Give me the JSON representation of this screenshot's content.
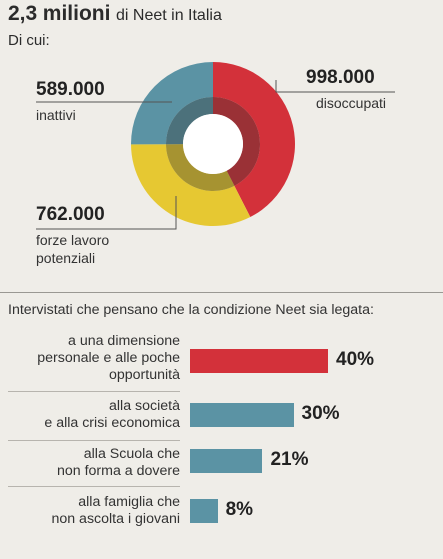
{
  "colors": {
    "red": "#d3313a",
    "blue": "#5b93a4",
    "yellow": "#e6c832",
    "background": "#efede8"
  },
  "header": {
    "title_number": "2,3",
    "title_bold": "milioni",
    "title_rest": "di Neet in Italia",
    "subtitle": "Di cui:"
  },
  "donut": {
    "segments": [
      {
        "value_text": "998.000",
        "label": "disoccupati",
        "color": "#d3313a"
      },
      {
        "value_text": "762.000",
        "label_line1": "forze lavoro",
        "label_line2": "potenziali",
        "color": "#e6c832"
      },
      {
        "value_text": "589.000",
        "label": "inattivi",
        "color": "#5b93a4"
      }
    ]
  },
  "bars": {
    "title": "Intervistati che pensano che la condizione Neet sia legata:",
    "rows": [
      {
        "lines": [
          "a una dimensione",
          "personale e alle poche",
          "opportunità"
        ],
        "pct_text": "40%",
        "color": "#d3313a"
      },
      {
        "lines": [
          "alla società",
          "e alla crisi economica"
        ],
        "pct_text": "30%",
        "color": "#5b93a4"
      },
      {
        "lines": [
          "alla Scuola che",
          "non forma a dovere"
        ],
        "pct_text": "21%",
        "color": "#5b93a4"
      },
      {
        "lines": [
          "alla famiglia che",
          "non ascolta i giovani"
        ],
        "pct_text": "8%",
        "color": "#5b93a4"
      }
    ]
  },
  "chart_data": [
    {
      "type": "pie",
      "title": "2,3 milioni di Neet in Italia",
      "categories": [
        "disoccupati",
        "forze lavoro potenziali",
        "inattivi"
      ],
      "values": [
        998000,
        762000,
        589000
      ]
    },
    {
      "type": "bar",
      "title": "Intervistati che pensano che la condizione Neet sia legata:",
      "categories": [
        "a una dimensione personale e alle poche opportunità",
        "alla società e alla crisi economica",
        "alla Scuola che non forma a dovere",
        "alla famiglia che non ascolta i giovani"
      ],
      "values": [
        40,
        30,
        21,
        8
      ]
    }
  ]
}
